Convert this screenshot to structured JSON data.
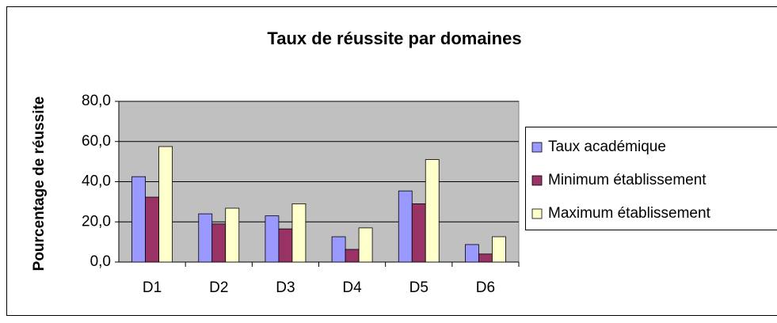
{
  "chart_data": {
    "type": "bar",
    "title": "Taux de réussite par domaines",
    "y_label": "Pourcentage de réussite",
    "categories": [
      "D1",
      "D2",
      "D3",
      "D4",
      "D5",
      "D6"
    ],
    "series": [
      {
        "name": "Taux académique",
        "color": "#9999ff",
        "values": [
          42.5,
          24,
          23,
          12.6,
          35.4,
          8.7
        ]
      },
      {
        "name": "Minimum établissement",
        "color": "#993366",
        "values": [
          32.3,
          19,
          16.5,
          6.3,
          29,
          4
        ]
      },
      {
        "name": "Maximum établissement",
        "color": "#ffffcc",
        "values": [
          57.5,
          26.8,
          29,
          17,
          51,
          12.6
        ]
      }
    ],
    "ylim": [
      0,
      80
    ],
    "yticks": [
      {
        "value": 0,
        "label": "0,0"
      },
      {
        "value": 20,
        "label": "20,0"
      },
      {
        "value": 40,
        "label": "40,0"
      },
      {
        "value": 60,
        "label": "60,0"
      },
      {
        "value": 80,
        "label": "80,0"
      }
    ],
    "grid": true,
    "legend": "right"
  }
}
